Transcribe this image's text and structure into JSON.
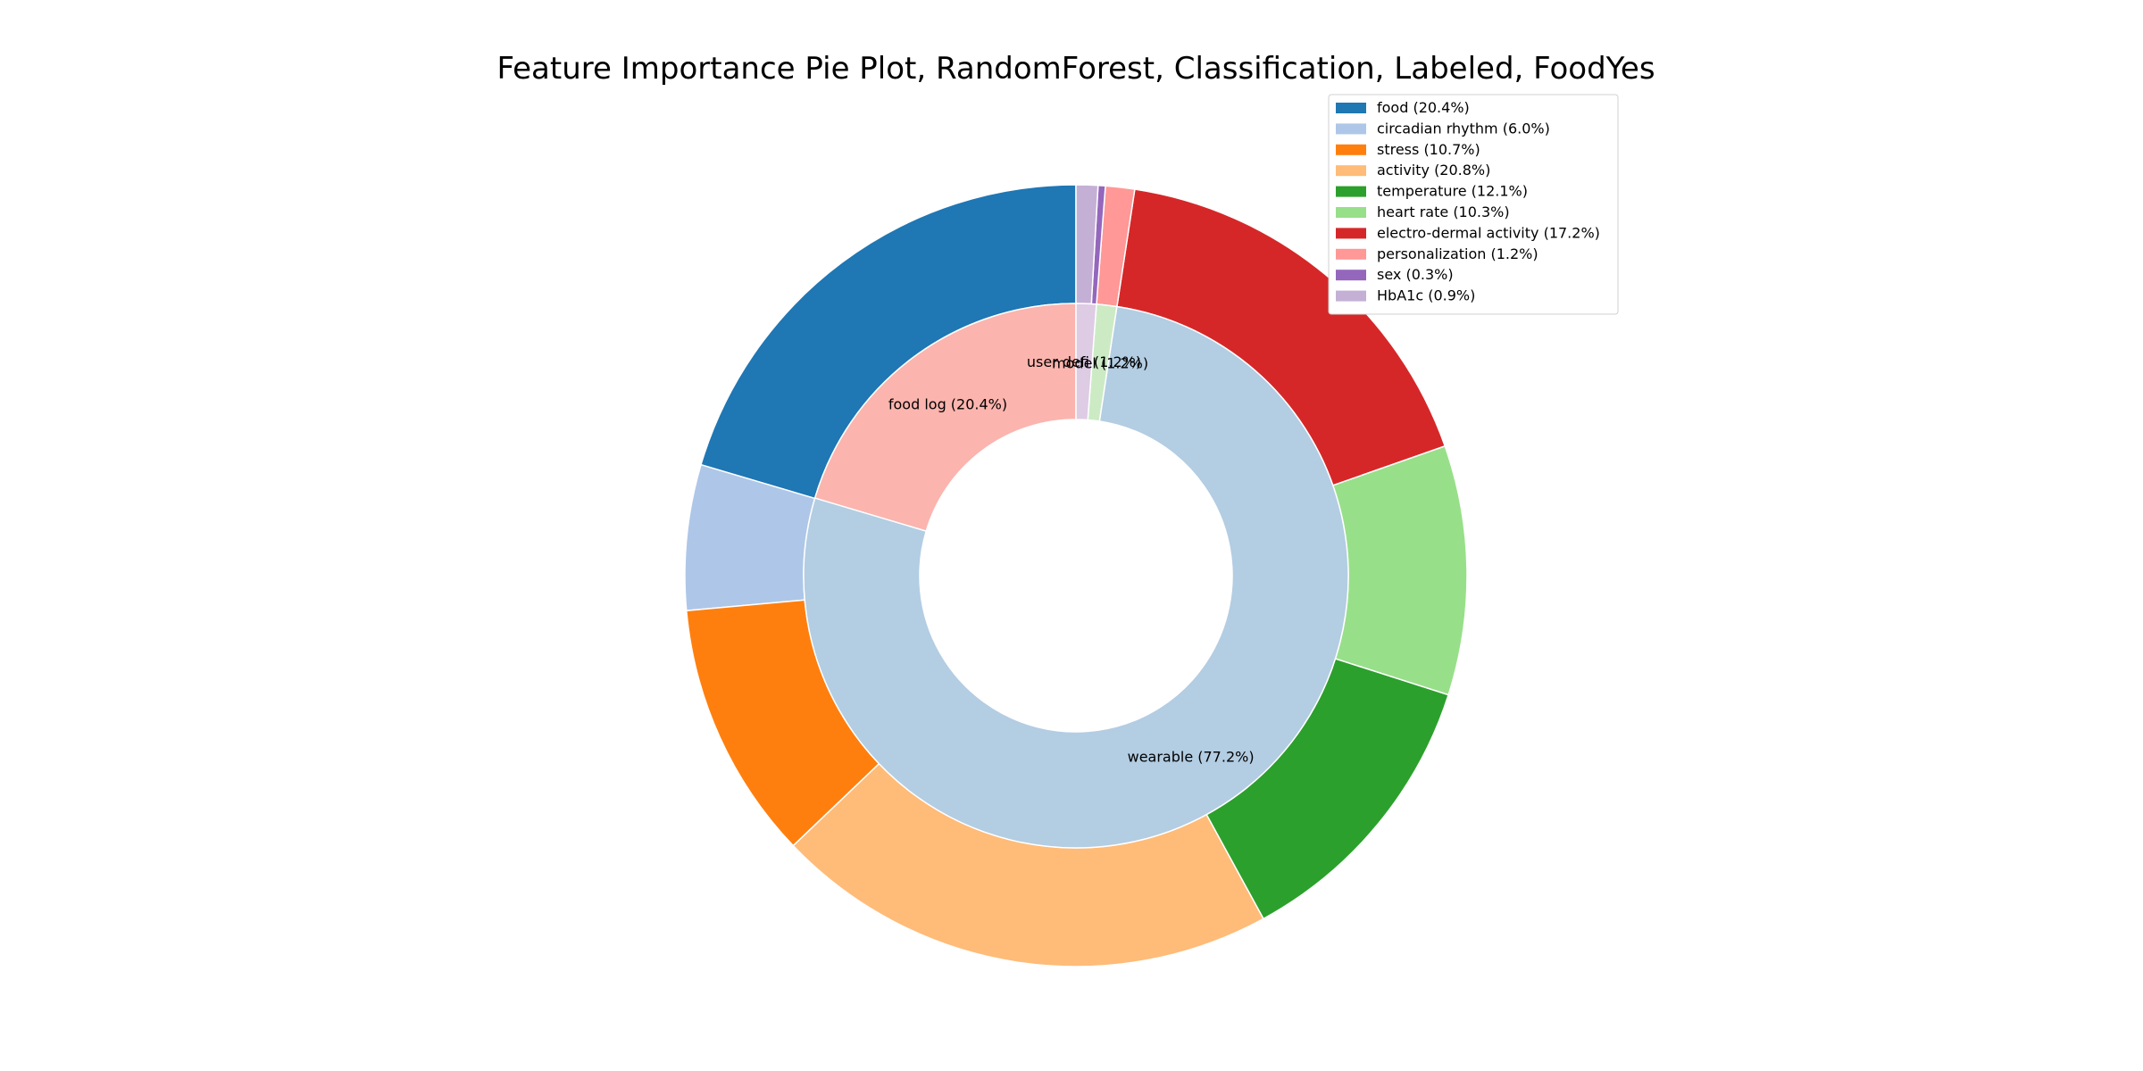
{
  "chart_data": {
    "type": "pie",
    "title": "Feature Importance Pie Plot, RandomForest, Classification, Labeled, FoodYes",
    "outer_ring": [
      {
        "label": "food (20.4%)",
        "value": 20.4,
        "color": "#1f77b4"
      },
      {
        "label": "circadian rhythm (6.0%)",
        "value": 6.0,
        "color": "#aec7e8"
      },
      {
        "label": "stress (10.7%)",
        "value": 10.7,
        "color": "#ff7f0e"
      },
      {
        "label": "activity (20.8%)",
        "value": 20.8,
        "color": "#ffbb78"
      },
      {
        "label": "temperature (12.1%)",
        "value": 12.1,
        "color": "#2ca02c"
      },
      {
        "label": "heart rate (10.3%)",
        "value": 10.3,
        "color": "#98df8a"
      },
      {
        "label": "electro-dermal activity (17.2%)",
        "value": 17.2,
        "color": "#d62728"
      },
      {
        "label": "personalization (1.2%)",
        "value": 1.2,
        "color": "#ff9896"
      },
      {
        "label": "sex (0.3%)",
        "value": 0.3,
        "color": "#9467bd"
      },
      {
        "label": "HbA1c (0.9%)",
        "value": 0.9,
        "color": "#c5b0d5"
      }
    ],
    "inner_ring": [
      {
        "label": "food log (20.4%)",
        "value": 20.4,
        "color": "#fbb4ae"
      },
      {
        "label": "wearable (77.2%)",
        "value": 77.2,
        "color": "#b3cde3"
      },
      {
        "label": "model (1.2%)",
        "value": 1.2,
        "color": "#ccebc5"
      },
      {
        "label": "user defi (1.2%)",
        "value": 1.2,
        "color": "#decbe4"
      }
    ],
    "legend_position": "top-right",
    "start_angle_deg": 90,
    "direction": "counterclockwise"
  }
}
